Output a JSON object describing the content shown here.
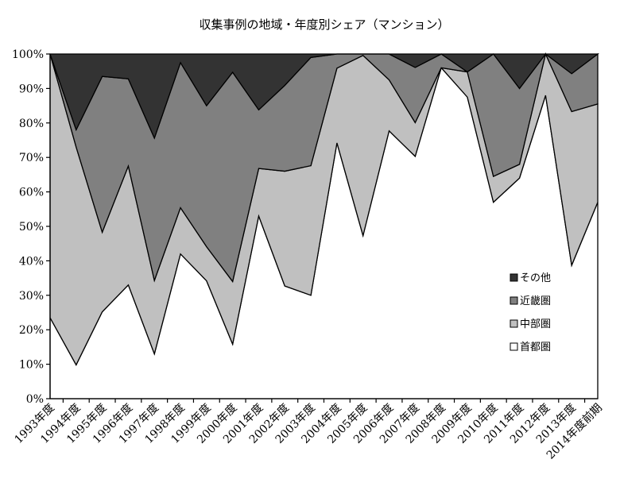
{
  "chart_data": {
    "type": "area",
    "stacked": "percent",
    "title": "収集事例の地域・年度別シェア（マンション）",
    "xlabel": "",
    "ylabel": "",
    "ylim": [
      0,
      100
    ],
    "y_ticks": [
      "0%",
      "10%",
      "20%",
      "30%",
      "40%",
      "50%",
      "60%",
      "70%",
      "80%",
      "90%",
      "100%"
    ],
    "grid": false,
    "legend_position": "lower-right inside",
    "categories": [
      "1993年度",
      "1994年度",
      "1995年度",
      "1996年度",
      "1997年度",
      "1998年度",
      "1999年度",
      "2000年度",
      "2001年度",
      "2002年度",
      "2003年度",
      "2004年度",
      "2005年度",
      "2006年度",
      "2007年度",
      "2008年度",
      "2009年度",
      "2010年度",
      "2011年度",
      "2012年度",
      "2013年度",
      "2014年度前期"
    ],
    "series": [
      {
        "name": "首都圏",
        "color": "#ffffff",
        "values": [
          23.5,
          9.8,
          25.2,
          33.0,
          13.0,
          42.0,
          34.2,
          15.8,
          53.0,
          32.7,
          30.0,
          74.2,
          47.3,
          77.7,
          70.3,
          96.0,
          87.5,
          57.0,
          64.0,
          88.0,
          38.7,
          57.0
        ]
      },
      {
        "name": "中部圏",
        "color": "#c0c0c0",
        "values": [
          76.5,
          63.2,
          23.1,
          34.5,
          21.3,
          13.4,
          9.9,
          18.2,
          13.8,
          33.3,
          37.6,
          21.7,
          52.3,
          14.8,
          9.8,
          0.0,
          7.3,
          7.5,
          4.0,
          12.0,
          44.6,
          28.5
        ]
      },
      {
        "name": "近畿圏",
        "color": "#808080",
        "values": [
          0.0,
          5.0,
          45.2,
          25.3,
          41.3,
          42.1,
          40.9,
          60.7,
          17.0,
          24.9,
          31.4,
          4.1,
          0.4,
          7.5,
          16.0,
          4.0,
          0.0,
          35.5,
          22.0,
          0.0,
          11.0,
          14.5
        ]
      },
      {
        "name": "その他",
        "color": "#333333",
        "values": [
          0.0,
          22.0,
          6.5,
          7.2,
          24.4,
          2.5,
          15.0,
          5.3,
          16.2,
          9.1,
          1.0,
          0.0,
          0.0,
          0.0,
          3.9,
          0.0,
          5.2,
          0.0,
          10.0,
          0.0,
          5.7,
          0.0
        ]
      }
    ],
    "legend_order": [
      "その他",
      "近畿圏",
      "中部圏",
      "首都圏"
    ]
  }
}
